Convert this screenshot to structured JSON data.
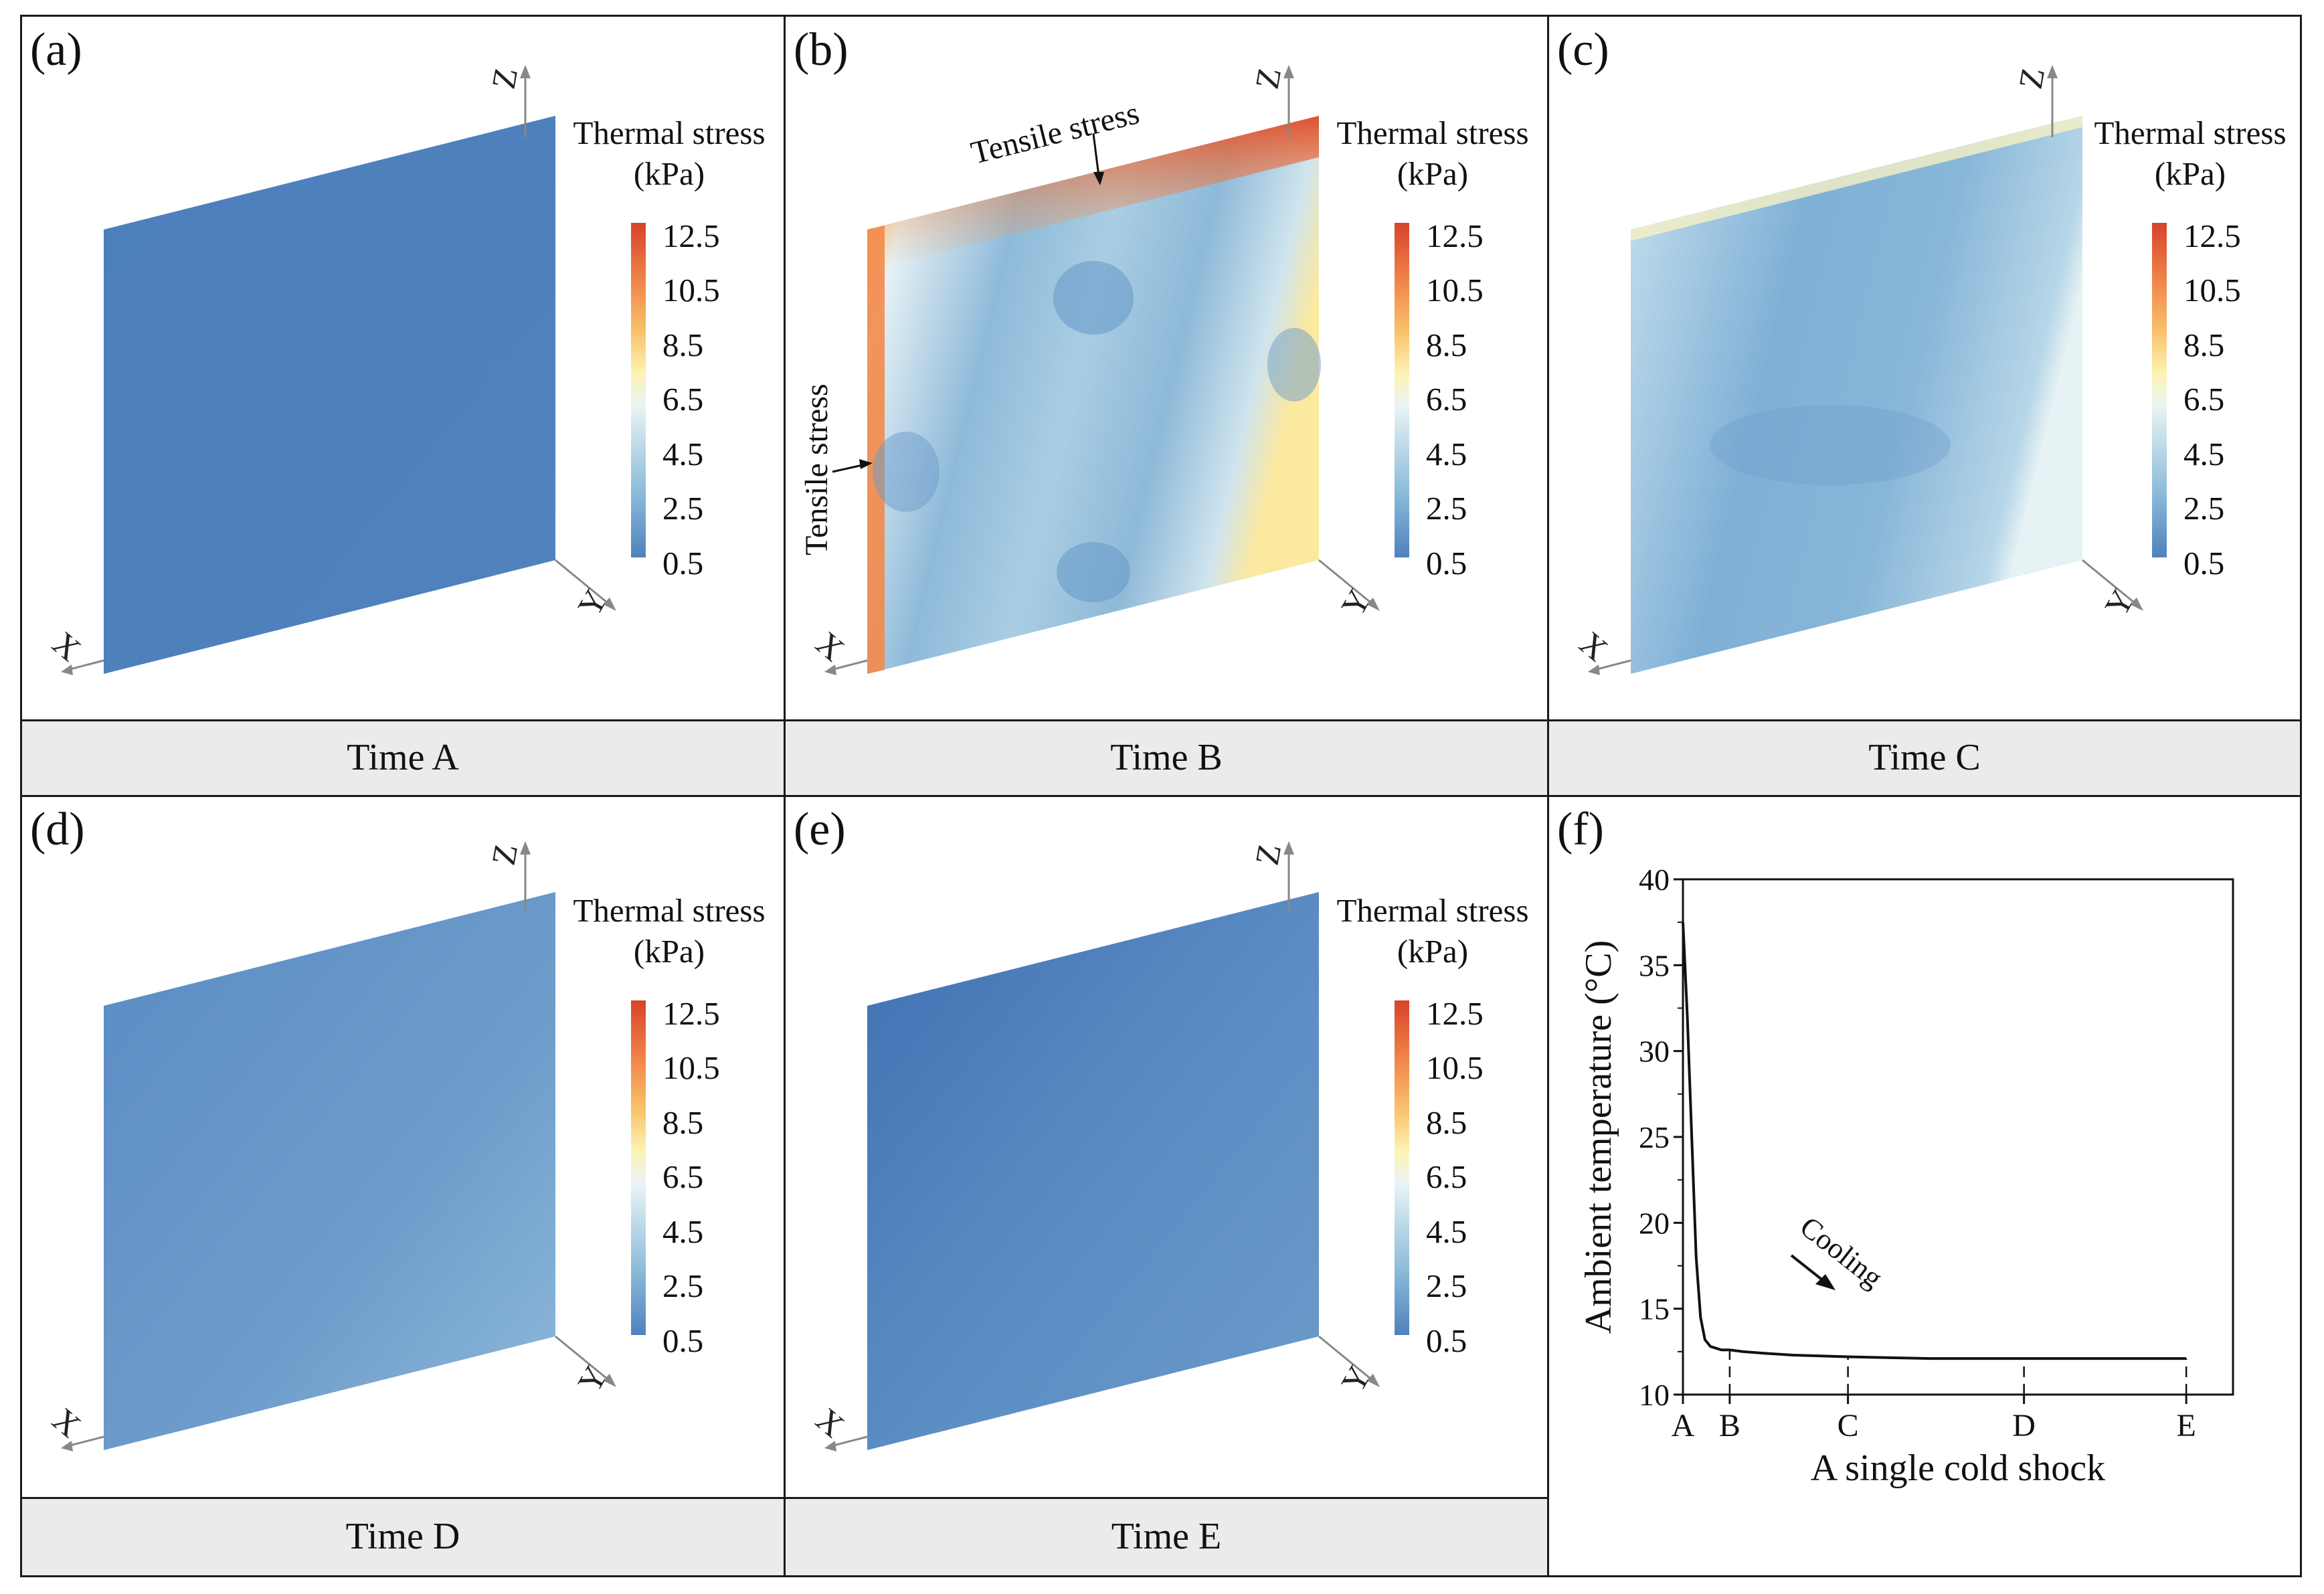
{
  "panels": [
    {
      "label": "(a)",
      "caption": "Time A"
    },
    {
      "label": "(b)",
      "caption": "Time B"
    },
    {
      "label": "(c)",
      "caption": "Time C"
    },
    {
      "label": "(d)",
      "caption": "Time D"
    },
    {
      "label": "(e)",
      "caption": "Time E"
    }
  ],
  "legend": {
    "title_line1": "Thermal stress",
    "title_line2": "(kPa)",
    "ticks": [
      "12.5",
      "10.5",
      "8.5",
      "6.5",
      "4.5",
      "2.5",
      "0.5"
    ]
  },
  "axes_letters": {
    "x": "X",
    "y": "Y",
    "z": "Z"
  },
  "annotations": {
    "tensile_top": "Tensile stress",
    "tensile_left": "Tensile stress",
    "cooling": "Cooling"
  },
  "colors": {
    "stress_low": "#4f81bd",
    "stress_mid": "#e9f3f5",
    "stress_high": "#d7432b",
    "caption_bg": "#ebebeb"
  },
  "chart_data": {
    "panel_label": "(f)",
    "type": "line",
    "title": "",
    "xlabel": "A single cold shock",
    "ylabel": "Ambient temperature (°C)",
    "ylim": [
      10,
      40
    ],
    "yticks": [
      10,
      15,
      20,
      25,
      30,
      35,
      40
    ],
    "xlim": [
      0,
      100
    ],
    "marker_labels": [
      "A",
      "B",
      "C",
      "D",
      "E"
    ],
    "marker_x": [
      0,
      8.5,
      30,
      62,
      91.5
    ],
    "series": [
      {
        "name": "Ambient temperature",
        "x": [
          0,
          0.8,
          1.6,
          2.4,
          3.2,
          4,
          5,
          6,
          7,
          8.5,
          11,
          15,
          20,
          30,
          45,
          62,
          80,
          91.5
        ],
        "y": [
          37.5,
          32,
          25,
          18,
          14.5,
          13.2,
          12.8,
          12.7,
          12.6,
          12.6,
          12.5,
          12.4,
          12.3,
          12.2,
          12.1,
          12.1,
          12.1,
          12.1
        ]
      }
    ],
    "cutoff": {
      "x": [
        0,
        91.5
      ]
    }
  }
}
